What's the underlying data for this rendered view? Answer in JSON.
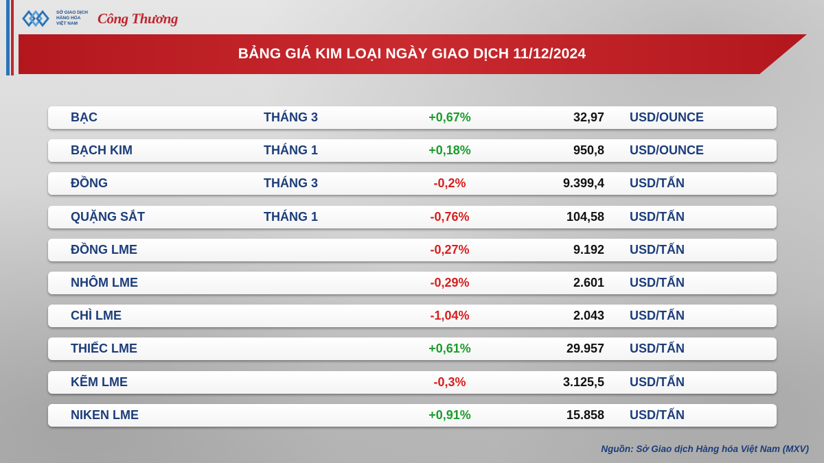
{
  "header": {
    "logo_lines": [
      "SỞ GIAO DỊCH",
      "HÀNG HÓA",
      "VIỆT NAM"
    ],
    "brand": "Công Thương",
    "title": "BẢNG GIÁ KIM LOẠI NGÀY GIAO DỊCH 11/12/2024"
  },
  "rows": [
    {
      "name": "BẠC",
      "month": "THÁNG 3",
      "change": "+0,67%",
      "price": "32,97",
      "unit": "USD/OUNCE"
    },
    {
      "name": "BẠCH KIM",
      "month": "THÁNG 1",
      "change": "+0,18%",
      "price": "950,8",
      "unit": "USD/OUNCE"
    },
    {
      "name": "ĐỒNG",
      "month": "THÁNG 3",
      "change": "-0,2%",
      "price": "9.399,4",
      "unit": "USD/TẤN"
    },
    {
      "name": "QUẶNG SẮT",
      "month": "THÁNG 1",
      "change": "-0,76%",
      "price": "104,58",
      "unit": "USD/TẤN"
    },
    {
      "name": "ĐỒNG LME",
      "month": "",
      "change": "-0,27%",
      "price": "9.192",
      "unit": "USD/TẤN"
    },
    {
      "name": "NHÔM LME",
      "month": "",
      "change": "-0,29%",
      "price": "2.601",
      "unit": "USD/TẤN"
    },
    {
      "name": "CHÌ LME",
      "month": "",
      "change": "-1,04%",
      "price": "2.043",
      "unit": "USD/TẤN"
    },
    {
      "name": "THIẾC LME",
      "month": "",
      "change": "+0,61%",
      "price": "29.957",
      "unit": "USD/TẤN"
    },
    {
      "name": "KẼM LME",
      "month": "",
      "change": "-0,3%",
      "price": "3.125,5",
      "unit": "USD/TẤN"
    },
    {
      "name": "NIKEN LME",
      "month": "",
      "change": "+0,91%",
      "price": "15.858",
      "unit": "USD/TẤN"
    }
  ],
  "colors": {
    "up": "#1b9c2c",
    "down": "#d81e1e",
    "banner": "#c0262d",
    "text": "#1c3d7a"
  },
  "source": "Nguồn: Sở Giao dịch Hàng hóa Việt Nam (MXV)"
}
